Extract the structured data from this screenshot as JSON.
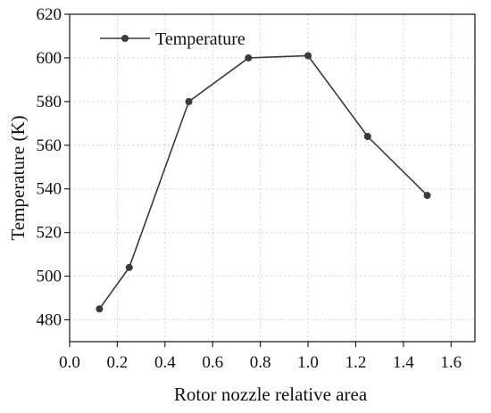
{
  "chart_data": {
    "type": "line",
    "xlabel": "Rotor nozzle relative area",
    "ylabel": "Temperature (K)",
    "xlim": [
      0.0,
      1.7
    ],
    "ylim": [
      470,
      620
    ],
    "x_ticks": [
      0.0,
      0.2,
      0.4,
      0.6,
      0.8,
      1.0,
      1.2,
      1.4,
      1.6
    ],
    "x_tick_labels": [
      "0.0",
      "0.2",
      "0.4",
      "0.6",
      "0.8",
      "1.0",
      "1.2",
      "1.4",
      "1.6"
    ],
    "y_ticks": [
      480,
      500,
      520,
      540,
      560,
      580,
      600,
      620
    ],
    "y_tick_labels": [
      "480",
      "500",
      "520",
      "540",
      "560",
      "580",
      "600",
      "620"
    ],
    "grid": true,
    "legend_position": "top-left",
    "series": [
      {
        "name": "Temperature",
        "color": "#3a3a3a",
        "marker": "circle",
        "x": [
          0.125,
          0.25,
          0.5,
          0.75,
          1.0,
          1.25,
          1.5
        ],
        "y": [
          485,
          504,
          580,
          600,
          601,
          564,
          537
        ]
      }
    ]
  }
}
